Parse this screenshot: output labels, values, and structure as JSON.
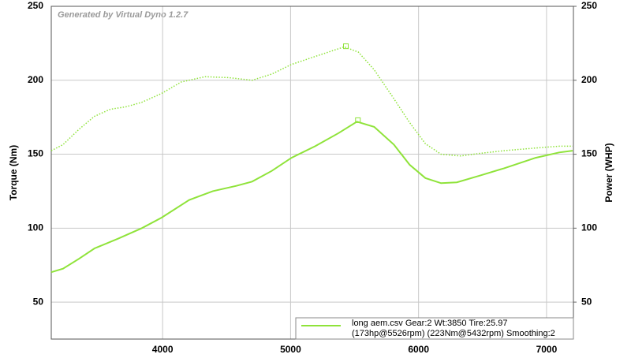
{
  "chart_data": {
    "type": "line",
    "watermark": "Generated by Virtual Dyno 1.2.7",
    "y_label": "Torque (Nm)",
    "y2_label": "Power (WHP)",
    "xlim": [
      3130,
      7210
    ],
    "xticks": [
      4000,
      5000,
      6000,
      7000
    ],
    "ylim": [
      25,
      250
    ],
    "yticks": [
      50,
      100,
      150,
      200,
      250
    ],
    "y2lim": [
      25,
      250
    ],
    "y2ticks": [
      50,
      100,
      150,
      200,
      250
    ],
    "grid": true,
    "legend": {
      "lines": [
        "long aem.csv Gear:2 Wt:3850 Tire:25.97",
        "(173hp@5526rpm) (223Nm@5432rpm) Smoothing:2"
      ]
    },
    "series": [
      {
        "color": "#8fe33a",
        "style": "dotted",
        "axis": "y",
        "x": [
          3130,
          3222,
          3345,
          3468,
          3592,
          3715,
          3838,
          3992,
          4145,
          4330,
          4515,
          4699,
          4853,
          5007,
          5192,
          5419,
          5530,
          5653,
          5807,
          5930,
          6053,
          6176,
          6330,
          6484,
          6668,
          6915,
          7099,
          7204
        ],
        "values": [
          152.4,
          156.5,
          166.7,
          175.6,
          180.4,
          182.1,
          185.1,
          191.1,
          198.8,
          202.4,
          201.8,
          200,
          204.2,
          210.7,
          216.1,
          222.6,
          219,
          207.1,
          187.5,
          171.4,
          157.1,
          150,
          148.8,
          150.6,
          152.4,
          154.2,
          155.4,
          155.4
        ],
        "peak": {
          "x": 5432,
          "value": 223
        }
      },
      {
        "color": "#8fe33a",
        "style": "solid",
        "axis": "y2",
        "x": [
          3130,
          3222,
          3345,
          3468,
          3653,
          3838,
          3992,
          4207,
          4392,
          4576,
          4699,
          4853,
          5007,
          5192,
          5376,
          5518,
          5653,
          5807,
          5930,
          6053,
          6176,
          6299,
          6484,
          6668,
          6915,
          7099,
          7204
        ],
        "values": [
          70.2,
          72.6,
          79.2,
          86.3,
          92.9,
          100,
          107.1,
          119,
          125,
          128.6,
          131.5,
          138.7,
          147.6,
          155.4,
          164.3,
          172,
          168.5,
          156.5,
          142.9,
          133.9,
          130.4,
          131,
          135.7,
          140.5,
          147.6,
          151.2,
          152.4
        ],
        "peak": {
          "x": 5526,
          "value": 173
        }
      }
    ]
  }
}
